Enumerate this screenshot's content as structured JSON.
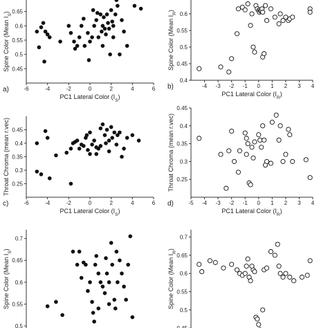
{
  "chart_data": [
    {
      "type": "scatter",
      "panel_label": "a)",
      "xlabel": "PC1 Lateral Color (I",
      "xlabel_sub": "S",
      "xlabel_end": ")",
      "ylabel": "Spine Color (Mean I",
      "ylabel_sub": "S",
      "ylabel_end": ")",
      "marker": "filled",
      "xlim": [
        -6,
        6
      ],
      "ylim": [
        0.4,
        0.7
      ],
      "xticks": [
        -6,
        -4,
        -2,
        0,
        2,
        4,
        6
      ],
      "xtick_labels": [
        "-6",
        "-4",
        "-2",
        "0",
        "2",
        "4",
        "6"
      ],
      "yticks": [
        0.45,
        0.5,
        0.55,
        0.6,
        0.65
      ],
      "ytick_labels": [
        "0.45",
        "0.5",
        "0.55",
        "0.6",
        "0.65"
      ],
      "points": [
        [
          -5.0,
          0.58
        ],
        [
          -4.8,
          0.525
        ],
        [
          -4.6,
          0.595
        ],
        [
          -4.4,
          0.61
        ],
        [
          -4.2,
          0.58
        ],
        [
          -4.0,
          0.57
        ],
        [
          -3.8,
          0.56
        ],
        [
          -4.3,
          0.475
        ],
        [
          -2.8,
          0.545
        ],
        [
          -2.0,
          0.6
        ],
        [
          -1.8,
          0.575
        ],
        [
          -1.5,
          0.545
        ],
        [
          -1.4,
          0.52
        ],
        [
          -1.2,
          0.53
        ],
        [
          -1.0,
          0.56
        ],
        [
          -0.8,
          0.6
        ],
        [
          -0.6,
          0.625
        ],
        [
          -0.2,
          0.575
        ],
        [
          -0.1,
          0.48
        ],
        [
          0.0,
          0.545
        ],
        [
          0.2,
          0.56
        ],
        [
          0.4,
          0.6
        ],
        [
          0.6,
          0.62
        ],
        [
          0.7,
          0.645
        ],
        [
          0.8,
          0.56
        ],
        [
          1.0,
          0.64
        ],
        [
          1.1,
          0.58
        ],
        [
          1.2,
          0.6
        ],
        [
          1.3,
          0.63
        ],
        [
          1.4,
          0.59
        ],
        [
          1.5,
          0.57
        ],
        [
          1.6,
          0.64
        ],
        [
          1.7,
          0.61
        ],
        [
          1.8,
          0.59
        ],
        [
          1.9,
          0.5
        ],
        [
          2.0,
          0.655
        ],
        [
          2.1,
          0.615
        ],
        [
          2.2,
          0.56
        ],
        [
          2.4,
          0.64
        ],
        [
          2.5,
          0.69
        ],
        [
          2.6,
          0.67
        ],
        [
          2.8,
          0.5
        ],
        [
          3.0,
          0.62
        ],
        [
          3.2,
          0.58
        ],
        [
          3.5,
          0.53
        ],
        [
          4.2,
          0.67
        ],
        [
          4.8,
          0.66
        ],
        [
          -0.5,
          0.53
        ],
        [
          0.3,
          0.655
        ],
        [
          1.2,
          0.53
        ],
        [
          2.2,
          0.6
        ]
      ]
    },
    {
      "type": "scatter",
      "panel_label": "b)",
      "xlabel": "PC1 Lateral Color (I",
      "xlabel_sub": "R",
      "xlabel_end": ")",
      "ylabel": "Spine Color (Mean I",
      "ylabel_sub": "R",
      "ylabel_end": ")",
      "marker": "open",
      "xlim": [
        -5,
        4
      ],
      "ylim": [
        0.4,
        0.65
      ],
      "xticks": [
        -4,
        -3,
        -2,
        -1,
        0,
        1,
        2,
        3,
        4
      ],
      "xtick_labels": [
        "-4",
        "-3",
        "-2",
        "-1",
        "0",
        "1",
        "2",
        "3",
        "4"
      ],
      "yticks": [
        0.4,
        0.45,
        0.5,
        0.55,
        0.6
      ],
      "ytick_labels": [
        "0.4",
        "0.45",
        "0.5",
        "0.55",
        "0.6"
      ],
      "points": [
        [
          -4.4,
          0.435
        ],
        [
          -2.8,
          0.44
        ],
        [
          -2.2,
          0.425
        ],
        [
          -2.0,
          0.465
        ],
        [
          -1.6,
          0.54
        ],
        [
          -1.2,
          0.62
        ],
        [
          -1.0,
          0.612
        ],
        [
          -0.8,
          0.63
        ],
        [
          -0.6,
          0.565
        ],
        [
          -0.5,
          0.6
        ],
        [
          -0.4,
          0.5
        ],
        [
          -0.3,
          0.485
        ],
        [
          -0.2,
          0.625
        ],
        [
          -0.1,
          0.615
        ],
        [
          0.0,
          0.61
        ],
        [
          0.05,
          0.605
        ],
        [
          0.1,
          0.612
        ],
        [
          0.15,
          0.608
        ],
        [
          0.2,
          0.61
        ],
        [
          0.25,
          0.615
        ],
        [
          0.3,
          0.605
        ],
        [
          0.3,
          0.47
        ],
        [
          0.5,
          0.625
        ],
        [
          0.6,
          0.58
        ],
        [
          0.9,
          0.615
        ],
        [
          1.2,
          0.59
        ],
        [
          1.5,
          0.57
        ],
        [
          1.6,
          0.6
        ],
        [
          1.8,
          0.58
        ],
        [
          2.0,
          0.59
        ],
        [
          2.2,
          0.58
        ],
        [
          2.3,
          0.585
        ],
        [
          2.5,
          0.59
        ],
        [
          3.8,
          0.615
        ],
        [
          3.8,
          0.605
        ],
        [
          -1.5,
          0.615
        ],
        [
          0.4,
          0.48
        ]
      ]
    },
    {
      "type": "scatter",
      "panel_label": "c)",
      "xlabel": "PC1 Lateral Color (I",
      "xlabel_sub": "S",
      "xlabel_end": ")",
      "ylabel": "Throat Chroma (mean r.vec)",
      "ylabel_sub": "",
      "ylabel_end": "",
      "marker": "filled",
      "xlim": [
        -6,
        6
      ],
      "ylim": [
        0.2,
        0.5
      ],
      "xticks": [
        -6,
        -4,
        -2,
        0,
        2,
        4,
        6
      ],
      "xtick_labels": [
        "-6",
        "-4",
        "-2",
        "0",
        "2",
        "4",
        "6"
      ],
      "yticks": [
        0.25,
        0.3,
        0.35,
        0.4,
        0.45
      ],
      "ytick_labels": [
        "0.25",
        "0.3",
        "0.35",
        "0.4",
        "0.45"
      ],
      "points": [
        [
          -5.0,
          0.4
        ],
        [
          -5.0,
          0.295
        ],
        [
          -4.6,
          0.285
        ],
        [
          -4.2,
          0.445
        ],
        [
          -4.0,
          0.42
        ],
        [
          -3.8,
          0.27
        ],
        [
          -3.2,
          0.355
        ],
        [
          -2.2,
          0.365
        ],
        [
          -1.8,
          0.38
        ],
        [
          -1.6,
          0.4
        ],
        [
          -1.4,
          0.405
        ],
        [
          -1.2,
          0.41
        ],
        [
          -1.0,
          0.38
        ],
        [
          -0.8,
          0.395
        ],
        [
          -0.6,
          0.39
        ],
        [
          -0.4,
          0.42
        ],
        [
          -0.2,
          0.375
        ],
        [
          0.0,
          0.36
        ],
        [
          0.0,
          0.44
        ],
        [
          0.2,
          0.395
        ],
        [
          0.4,
          0.41
        ],
        [
          0.6,
          0.385
        ],
        [
          0.8,
          0.38
        ],
        [
          1.0,
          0.39
        ],
        [
          1.0,
          0.455
        ],
        [
          1.2,
          0.47
        ],
        [
          1.4,
          0.43
        ],
        [
          1.5,
          0.4
        ],
        [
          1.6,
          0.45
        ],
        [
          1.8,
          0.41
        ],
        [
          2.0,
          0.46
        ],
        [
          2.1,
          0.42
        ],
        [
          2.3,
          0.44
        ],
        [
          2.5,
          0.395
        ],
        [
          2.6,
          0.43
        ],
        [
          2.8,
          0.44
        ],
        [
          3.0,
          0.35
        ],
        [
          3.2,
          0.38
        ],
        [
          3.5,
          0.42
        ],
        [
          4.0,
          0.43
        ],
        [
          4.6,
          0.41
        ],
        [
          -1.8,
          0.25
        ],
        [
          0.6,
          0.36
        ],
        [
          1.8,
          0.37
        ],
        [
          -0.3,
          0.43
        ]
      ]
    },
    {
      "type": "scatter",
      "panel_label": "d)",
      "xlabel": "PC1 Lateral Color (I",
      "xlabel_sub": "R",
      "xlabel_end": ")",
      "ylabel": "Throat Chroma (mean r.vec)",
      "ylabel_sub": "",
      "ylabel_end": "",
      "marker": "open",
      "xlim": [
        -5,
        4
      ],
      "ylim": [
        0.2,
        0.45
      ],
      "xticks": [
        -5,
        -4,
        -3,
        -2,
        -1,
        0,
        1,
        2,
        3,
        4
      ],
      "xtick_labels": [
        "-5",
        "-4",
        "-3",
        "-2",
        "-1",
        "0",
        "1",
        "2",
        "3",
        "4"
      ],
      "yticks": [
        0.25,
        0.3,
        0.35,
        0.4,
        0.45
      ],
      "ytick_labels": [
        "0.25",
        "0.3",
        "0.35",
        "0.4",
        "0.45"
      ],
      "points": [
        [
          -4.4,
          0.365
        ],
        [
          -2.8,
          0.32
        ],
        [
          -2.2,
          0.33
        ],
        [
          -2.0,
          0.385
        ],
        [
          -1.8,
          0.3
        ],
        [
          -1.5,
          0.27
        ],
        [
          -1.4,
          0.33
        ],
        [
          -1.0,
          0.38
        ],
        [
          -0.9,
          0.365
        ],
        [
          -0.8,
          0.35
        ],
        [
          -0.7,
          0.24
        ],
        [
          -0.6,
          0.235
        ],
        [
          -0.5,
          0.34
        ],
        [
          -0.4,
          0.31
        ],
        [
          -0.3,
          0.355
        ],
        [
          0.0,
          0.375
        ],
        [
          0.1,
          0.36
        ],
        [
          0.2,
          0.34
        ],
        [
          0.3,
          0.4
        ],
        [
          0.5,
          0.29
        ],
        [
          0.6,
          0.3
        ],
        [
          0.9,
          0.295
        ],
        [
          1.0,
          0.41
        ],
        [
          1.3,
          0.43
        ],
        [
          1.5,
          0.36
        ],
        [
          1.8,
          0.3
        ],
        [
          2.0,
          0.32
        ],
        [
          2.2,
          0.39
        ],
        [
          2.3,
          0.375
        ],
        [
          2.5,
          0.3
        ],
        [
          3.5,
          0.305
        ],
        [
          3.8,
          0.255
        ],
        [
          -0.9,
          0.32
        ],
        [
          0.4,
          0.36
        ],
        [
          1.6,
          0.4
        ],
        [
          -2.4,
          0.225
        ]
      ]
    },
    {
      "type": "scatter",
      "panel_label": "",
      "xlabel": "",
      "xlabel_sub": "",
      "xlabel_end": "",
      "ylabel": "Spine Color (Mean I",
      "ylabel_sub": "S",
      "ylabel_end": ")",
      "marker": "filled",
      "xlim": [
        -6,
        6
      ],
      "ylim": [
        0.47,
        0.72
      ],
      "xticks": [],
      "xtick_labels": [],
      "yticks": [
        0.5,
        0.55,
        0.6,
        0.65,
        0.7
      ],
      "ytick_labels": [
        "0.5",
        "0.55",
        "0.6",
        "0.65",
        "0.7"
      ],
      "points": [
        [
          -4.0,
          0.545
        ],
        [
          -3.2,
          0.555
        ],
        [
          -2.6,
          0.525
        ],
        [
          -1.6,
          0.67
        ],
        [
          -1.2,
          0.64
        ],
        [
          -0.8,
          0.61
        ],
        [
          -0.6,
          0.645
        ],
        [
          -0.4,
          0.64
        ],
        [
          -0.2,
          0.58
        ],
        [
          0.0,
          0.6
        ],
        [
          0.2,
          0.555
        ],
        [
          0.3,
          0.53
        ],
        [
          0.4,
          0.51
        ],
        [
          0.5,
          0.64
        ],
        [
          0.6,
          0.66
        ],
        [
          0.8,
          0.62
        ],
        [
          1.0,
          0.6
        ],
        [
          1.2,
          0.59
        ],
        [
          1.4,
          0.575
        ],
        [
          1.5,
          0.655
        ],
        [
          1.6,
          0.62
        ],
        [
          1.8,
          0.6
        ],
        [
          2.0,
          0.69
        ],
        [
          2.1,
          0.64
        ],
        [
          2.3,
          0.56
        ],
        [
          2.4,
          0.54
        ],
        [
          2.5,
          0.67
        ],
        [
          2.6,
          0.6
        ],
        [
          2.8,
          0.65
        ],
        [
          3.0,
          0.62
        ],
        [
          3.2,
          0.59
        ],
        [
          3.4,
          0.56
        ],
        [
          3.6,
          0.64
        ],
        [
          3.8,
          0.705
        ],
        [
          4.0,
          0.52
        ],
        [
          1.0,
          0.48
        ],
        [
          -1.0,
          0.67
        ],
        [
          0.8,
          0.54
        ],
        [
          1.8,
          0.55
        ]
      ]
    },
    {
      "type": "scatter",
      "panel_label": "",
      "xlabel": "",
      "xlabel_sub": "",
      "xlabel_end": "",
      "ylabel": "Spine Color (Mean I",
      "ylabel_sub": "R",
      "ylabel_end": ")",
      "marker": "open",
      "xlim": [
        -5,
        4
      ],
      "ylim": [
        0.42,
        0.72
      ],
      "xticks": [],
      "xtick_labels": [],
      "yticks": [
        0.45,
        0.5,
        0.55,
        0.6,
        0.65,
        0.7
      ],
      "ytick_labels": [
        "0.45",
        "0.5",
        "0.55",
        "0.6",
        "0.65",
        "0.7"
      ],
      "points": [
        [
          -4.4,
          0.625
        ],
        [
          -4.2,
          0.605
        ],
        [
          -3.6,
          0.635
        ],
        [
          -3.2,
          0.63
        ],
        [
          -2.6,
          0.615
        ],
        [
          -2.0,
          0.625
        ],
        [
          -1.6,
          0.61
        ],
        [
          -1.4,
          0.6
        ],
        [
          -1.2,
          0.595
        ],
        [
          -1.0,
          0.6
        ],
        [
          -0.9,
          0.62
        ],
        [
          -0.8,
          0.64
        ],
        [
          -0.7,
          0.59
        ],
        [
          -0.6,
          0.58
        ],
        [
          -0.4,
          0.61
        ],
        [
          -0.3,
          0.605
        ],
        [
          -0.2,
          0.48
        ],
        [
          -0.1,
          0.475
        ],
        [
          0.0,
          0.46
        ],
        [
          0.1,
          0.445
        ],
        [
          0.3,
          0.5
        ],
        [
          0.4,
          0.61
        ],
        [
          0.6,
          0.615
        ],
        [
          0.9,
          0.66
        ],
        [
          1.2,
          0.65
        ],
        [
          1.4,
          0.68
        ],
        [
          1.5,
          0.62
        ],
        [
          1.6,
          0.6
        ],
        [
          1.8,
          0.59
        ],
        [
          2.0,
          0.6
        ],
        [
          2.3,
          0.59
        ],
        [
          2.6,
          0.58
        ],
        [
          3.2,
          0.59
        ],
        [
          3.6,
          0.595
        ],
        [
          3.8,
          0.635
        ],
        [
          -0.5,
          0.62
        ]
      ]
    }
  ]
}
